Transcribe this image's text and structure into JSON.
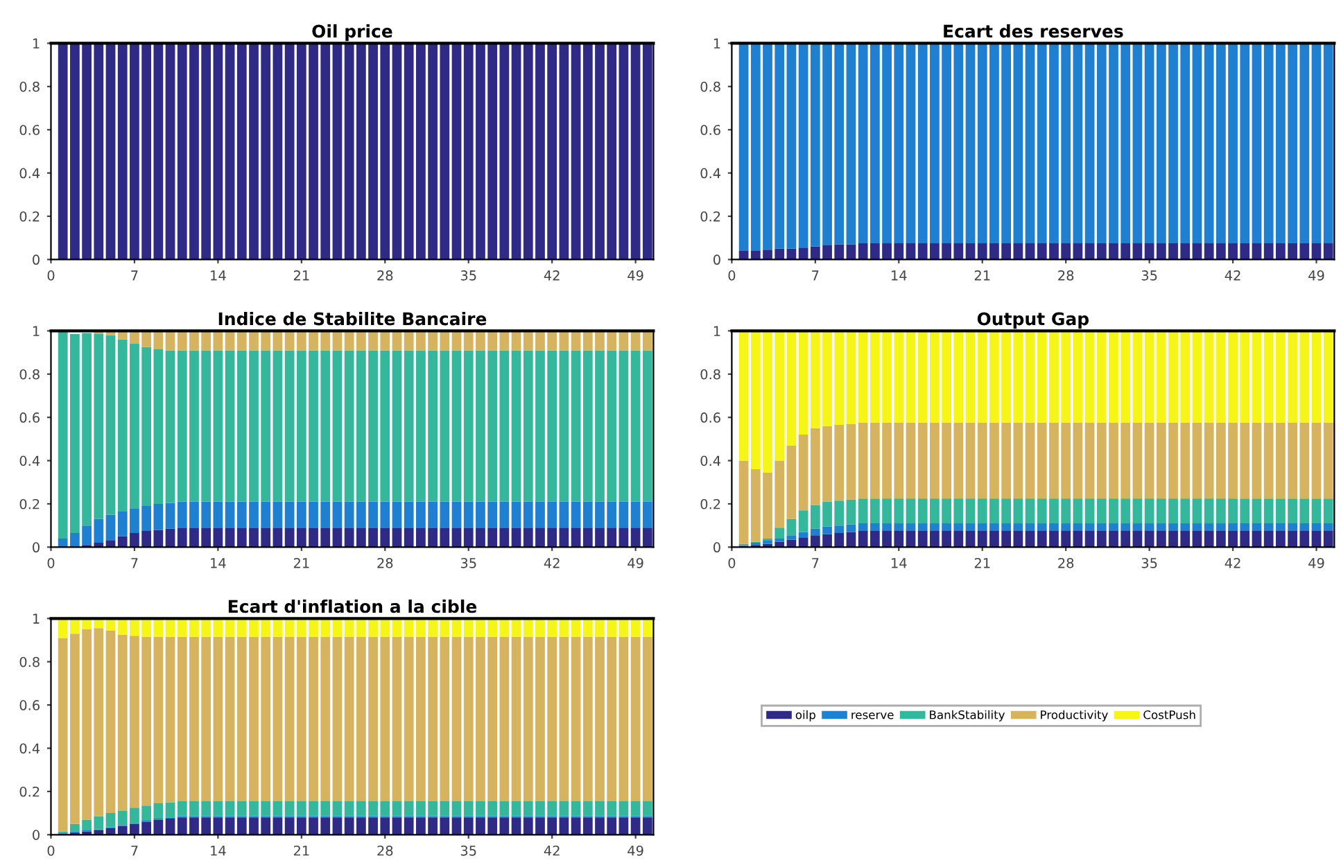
{
  "chart_data": [
    {
      "type": "bar",
      "stacked": true,
      "title": "Oil price",
      "x": [
        1,
        2,
        3,
        4,
        5,
        6,
        7,
        8,
        9,
        10,
        11,
        12,
        13,
        14,
        15,
        16,
        17,
        18,
        19,
        20,
        21,
        22,
        23,
        24,
        25,
        26,
        27,
        28,
        29,
        30,
        31,
        32,
        33,
        34,
        35,
        36,
        37,
        38,
        39,
        40,
        41,
        42,
        43,
        44,
        45,
        46,
        47,
        48,
        49,
        50
      ],
      "xlim": [
        0,
        50.5
      ],
      "xticks": [
        0,
        7,
        14,
        21,
        28,
        35,
        42,
        49
      ],
      "ylim": [
        0,
        1
      ],
      "yticks": [
        0,
        0.2,
        0.4,
        0.6,
        0.8,
        1
      ],
      "series": [
        {
          "color": "#2e2a86",
          "values": [
            1,
            1,
            1,
            1,
            1,
            1,
            1,
            1,
            1,
            1,
            1,
            1,
            1,
            1,
            1,
            1,
            1,
            1,
            1,
            1,
            1,
            1,
            1,
            1,
            1,
            1,
            1,
            1,
            1,
            1,
            1,
            1,
            1,
            1,
            1,
            1,
            1,
            1,
            1,
            1,
            1,
            1,
            1,
            1,
            1,
            1,
            1,
            1,
            1,
            1
          ]
        }
      ]
    },
    {
      "type": "bar",
      "stacked": true,
      "title": "Ecart des reserves",
      "x": [
        1,
        2,
        3,
        4,
        5,
        6,
        7,
        8,
        9,
        10,
        11,
        12,
        13,
        14,
        15,
        16,
        17,
        18,
        19,
        20,
        21,
        22,
        23,
        24,
        25,
        26,
        27,
        28,
        29,
        30,
        31,
        32,
        33,
        34,
        35,
        36,
        37,
        38,
        39,
        40,
        41,
        42,
        43,
        44,
        45,
        46,
        47,
        48,
        49,
        50
      ],
      "xlim": [
        0,
        50.5
      ],
      "xticks": [
        0,
        7,
        14,
        21,
        28,
        35,
        42,
        49
      ],
      "ylim": [
        0,
        1
      ],
      "yticks": [
        0,
        0.2,
        0.4,
        0.6,
        0.8,
        1
      ],
      "series": [
        {
          "color": "#2e2a86",
          "values": [
            0.04,
            0.04,
            0.045,
            0.05,
            0.05,
            0.055,
            0.06,
            0.065,
            0.07,
            0.07,
            0.075,
            0.075,
            0.075,
            0.075,
            0.075,
            0.075,
            0.075,
            0.075,
            0.075,
            0.075,
            0.075,
            0.075,
            0.075,
            0.075,
            0.075,
            0.075,
            0.075,
            0.075,
            0.075,
            0.075,
            0.075,
            0.075,
            0.075,
            0.075,
            0.075,
            0.075,
            0.075,
            0.075,
            0.075,
            0.075,
            0.075,
            0.075,
            0.075,
            0.075,
            0.075,
            0.075,
            0.075,
            0.075,
            0.075,
            0.075
          ]
        },
        {
          "color": "#1f80d2",
          "values": [
            0.96,
            0.96,
            0.955,
            0.95,
            0.95,
            0.945,
            0.94,
            0.935,
            0.93,
            0.93,
            0.925,
            0.925,
            0.925,
            0.925,
            0.925,
            0.925,
            0.925,
            0.925,
            0.925,
            0.925,
            0.925,
            0.925,
            0.925,
            0.925,
            0.925,
            0.925,
            0.925,
            0.925,
            0.925,
            0.925,
            0.925,
            0.925,
            0.925,
            0.925,
            0.925,
            0.925,
            0.925,
            0.925,
            0.925,
            0.925,
            0.925,
            0.925,
            0.925,
            0.925,
            0.925,
            0.925,
            0.925,
            0.925,
            0.925,
            0.925
          ]
        }
      ]
    },
    {
      "type": "bar",
      "stacked": true,
      "title": "Indice de Stabilite Bancaire",
      "x": [
        1,
        2,
        3,
        4,
        5,
        6,
        7,
        8,
        9,
        10,
        11,
        12,
        13,
        14,
        15,
        16,
        17,
        18,
        19,
        20,
        21,
        22,
        23,
        24,
        25,
        26,
        27,
        28,
        29,
        30,
        31,
        32,
        33,
        34,
        35,
        36,
        37,
        38,
        39,
        40,
        41,
        42,
        43,
        44,
        45,
        46,
        47,
        48,
        49,
        50
      ],
      "xlim": [
        0,
        50.5
      ],
      "xticks": [
        0,
        7,
        14,
        21,
        28,
        35,
        42,
        49
      ],
      "ylim": [
        0,
        1
      ],
      "yticks": [
        0,
        0.2,
        0.4,
        0.6,
        0.8,
        1
      ],
      "series": [
        {
          "color": "#2e2a86",
          "values": [
            0,
            null,
            0.01,
            0.02,
            0.03,
            0.05,
            0.065,
            0.075,
            0.08,
            0.085,
            0.09,
            0.09,
            0.09,
            0.09,
            0.09,
            0.09,
            0.09,
            0.09,
            0.09,
            0.09,
            0.09,
            0.09,
            0.09,
            0.09,
            0.09,
            0.09,
            0.09,
            0.09,
            0.09,
            0.09,
            0.09,
            0.09,
            0.09,
            0.09,
            0.09,
            0.09,
            0.09,
            0.09,
            0.09,
            0.09,
            0.09,
            0.09,
            0.09,
            0.09,
            0.09,
            0.09,
            0.09,
            0.09,
            0.09,
            0.09
          ]
        },
        {
          "color": "#1f80d2",
          "values": [
            0.04,
            0.065,
            0.09,
            0.11,
            0.12,
            0.115,
            0.115,
            0.115,
            0.12,
            0.12,
            0.12,
            0.12,
            0.12,
            0.12,
            0.12,
            0.12,
            0.12,
            0.12,
            0.12,
            0.12,
            0.12,
            0.12,
            0.12,
            0.12,
            0.12,
            0.12,
            0.12,
            0.12,
            0.12,
            0.12,
            0.12,
            0.12,
            0.12,
            0.12,
            0.12,
            0.12,
            0.12,
            0.12,
            0.12,
            0.12,
            0.12,
            0.12,
            0.12,
            0.12,
            0.12,
            0.12,
            0.12,
            0.12,
            0.12,
            0.12
          ]
        },
        {
          "color": "#35b79c",
          "values": [
            0.955,
            0.92,
            0.89,
            0.855,
            0.83,
            0.795,
            0.76,
            0.735,
            0.715,
            0.705,
            0.7,
            0.7,
            0.7,
            0.7,
            0.7,
            0.7,
            0.7,
            0.7,
            0.7,
            0.7,
            0.7,
            0.7,
            0.7,
            0.7,
            0.7,
            0.7,
            0.7,
            0.7,
            0.7,
            0.7,
            0.7,
            0.7,
            0.7,
            0.7,
            0.7,
            0.7,
            0.7,
            0.7,
            0.7,
            0.7,
            0.7,
            0.7,
            0.7,
            0.7,
            0.7,
            0.7,
            0.7,
            0.7,
            0.7,
            0.7
          ]
        },
        {
          "color": "#d5b35f",
          "values": [
            null,
            null,
            null,
            0.015,
            0.02,
            0.04,
            0.06,
            0.075,
            0.085,
            0.09,
            0.09,
            0.09,
            0.09,
            0.09,
            0.09,
            0.09,
            0.09,
            0.09,
            0.09,
            0.09,
            0.09,
            0.09,
            0.09,
            0.09,
            0.09,
            0.09,
            0.09,
            0.09,
            0.09,
            0.09,
            0.09,
            0.09,
            0.09,
            0.09,
            0.09,
            0.09,
            0.09,
            0.09,
            0.09,
            0.09,
            0.09,
            0.09,
            0.09,
            0.09,
            0.09,
            0.09,
            0.09,
            0.09,
            0.09,
            0.09
          ]
        }
      ]
    },
    {
      "type": "bar",
      "stacked": true,
      "title": "Output Gap",
      "x": [
        1,
        2,
        3,
        4,
        5,
        6,
        7,
        8,
        9,
        10,
        11,
        12,
        13,
        14,
        15,
        16,
        17,
        18,
        19,
        20,
        21,
        22,
        23,
        24,
        25,
        26,
        27,
        28,
        29,
        30,
        31,
        32,
        33,
        34,
        35,
        36,
        37,
        38,
        39,
        40,
        41,
        42,
        43,
        44,
        45,
        46,
        47,
        48,
        49,
        50
      ],
      "xlim": [
        0,
        50.5
      ],
      "xticks": [
        0,
        7,
        14,
        21,
        28,
        35,
        42,
        49
      ],
      "ylim": [
        0,
        1
      ],
      "yticks": [
        0,
        0.2,
        0.4,
        0.6,
        0.8,
        1
      ],
      "series": [
        {
          "color": "#2e2a86",
          "values": [
            0.005,
            0.01,
            0.015,
            0.025,
            0.035,
            0.045,
            0.055,
            0.06,
            0.065,
            0.07,
            0.075,
            0.075,
            0.075,
            0.075,
            0.075,
            0.075,
            0.075,
            0.075,
            0.075,
            0.075,
            0.075,
            0.075,
            0.075,
            0.075,
            0.075,
            0.075,
            0.075,
            0.075,
            0.075,
            0.075,
            0.075,
            0.075,
            0.075,
            0.075,
            0.075,
            0.075,
            0.075,
            0.075,
            0.075,
            0.075,
            0.075,
            0.075,
            0.075,
            0.075,
            0.075,
            0.075,
            0.075,
            0.075,
            0.075,
            0.075
          ]
        },
        {
          "color": "#1f80d2",
          "values": [
            0.005,
            0.01,
            0.015,
            0.015,
            0.02,
            0.025,
            0.03,
            0.035,
            0.035,
            0.035,
            0.035,
            0.035,
            0.035,
            0.035,
            0.035,
            0.035,
            0.035,
            0.035,
            0.035,
            0.035,
            0.035,
            0.035,
            0.035,
            0.035,
            0.035,
            0.035,
            0.035,
            0.035,
            0.035,
            0.035,
            0.035,
            0.035,
            0.035,
            0.035,
            0.035,
            0.035,
            0.035,
            0.035,
            0.035,
            0.035,
            0.035,
            0.035,
            0.035,
            0.035,
            0.035,
            0.035,
            0.035,
            0.035,
            0.035,
            0.035
          ]
        },
        {
          "color": "#35b79c",
          "values": [
            0.005,
            0.005,
            0.01,
            0.05,
            0.075,
            0.1,
            0.11,
            0.115,
            0.115,
            0.115,
            0.115,
            0.115,
            0.115,
            0.115,
            0.115,
            0.115,
            0.115,
            0.115,
            0.115,
            0.115,
            0.115,
            0.115,
            0.115,
            0.115,
            0.115,
            0.115,
            0.115,
            0.115,
            0.115,
            0.115,
            0.115,
            0.115,
            0.115,
            0.115,
            0.115,
            0.115,
            0.115,
            0.115,
            0.115,
            0.115,
            0.115,
            0.115,
            0.115,
            0.115,
            0.115,
            0.115,
            0.115,
            0.115,
            0.115,
            0.115
          ]
        },
        {
          "color": "#d5b35f",
          "values": [
            0.385,
            0.335,
            0.305,
            0.31,
            0.34,
            0.35,
            0.355,
            0.35,
            0.35,
            0.35,
            0.35,
            0.35,
            0.35,
            0.35,
            0.35,
            0.35,
            0.35,
            0.35,
            0.35,
            0.35,
            0.35,
            0.35,
            0.35,
            0.35,
            0.35,
            0.35,
            0.35,
            0.35,
            0.35,
            0.35,
            0.35,
            0.35,
            0.35,
            0.35,
            0.35,
            0.35,
            0.35,
            0.35,
            0.35,
            0.35,
            0.35,
            0.35,
            0.35,
            0.35,
            0.35,
            0.35,
            0.35,
            0.35,
            0.35,
            0.35
          ]
        },
        {
          "color": "#f5f518",
          "values": [
            0.6,
            0.64,
            0.655,
            0.6,
            0.53,
            0.48,
            0.45,
            0.44,
            0.435,
            0.43,
            0.425,
            0.425,
            0.425,
            0.425,
            0.425,
            0.425,
            0.425,
            0.425,
            0.425,
            0.425,
            0.425,
            0.425,
            0.425,
            0.425,
            0.425,
            0.425,
            0.425,
            0.425,
            0.425,
            0.425,
            0.425,
            0.425,
            0.425,
            0.425,
            0.425,
            0.425,
            0.425,
            0.425,
            0.425,
            0.425,
            0.425,
            0.425,
            0.425,
            0.425,
            0.425,
            0.425,
            0.425,
            0.425,
            0.425,
            0.425
          ]
        }
      ]
    },
    {
      "type": "bar",
      "stacked": true,
      "title": "Ecart d'inflation a la cible",
      "legend": "right",
      "x": [
        1,
        2,
        3,
        4,
        5,
        6,
        7,
        8,
        9,
        10,
        11,
        12,
        13,
        14,
        15,
        16,
        17,
        18,
        19,
        20,
        21,
        22,
        23,
        24,
        25,
        26,
        27,
        28,
        29,
        30,
        31,
        32,
        33,
        34,
        35,
        36,
        37,
        38,
        39,
        40,
        41,
        42,
        43,
        44,
        45,
        46,
        47,
        48,
        49,
        50
      ],
      "xlim": [
        0,
        50.5
      ],
      "xticks": [
        0,
        7,
        14,
        21,
        28,
        35,
        42,
        49
      ],
      "ylim": [
        0,
        1
      ],
      "yticks": [
        0,
        0.2,
        0.4,
        0.6,
        0.8,
        1
      ],
      "series": [
        {
          "name": "oilp",
          "color": "#2e2a86",
          "values": [
            0.005,
            0.01,
            0.015,
            0.02,
            0.03,
            0.04,
            0.05,
            0.06,
            0.07,
            0.075,
            0.08,
            0.08,
            0.08,
            0.08,
            0.08,
            0.08,
            0.08,
            0.08,
            0.08,
            0.08,
            0.08,
            0.08,
            0.08,
            0.08,
            0.08,
            0.08,
            0.08,
            0.08,
            0.08,
            0.08,
            0.08,
            0.08,
            0.08,
            0.08,
            0.08,
            0.08,
            0.08,
            0.08,
            0.08,
            0.08,
            0.08,
            0.08,
            0.08,
            0.08,
            0.08,
            0.08,
            0.08,
            0.08,
            0.08,
            0.08
          ]
        },
        {
          "name": "reserve",
          "color": "#1f80d2",
          "values": [
            0.005,
            0.005,
            0.005,
            0.005,
            0.005,
            0.005,
            0.005,
            0.005,
            0.005,
            0.005,
            0.005,
            0.005,
            0.005,
            0.005,
            0.005,
            0.005,
            0.005,
            0.005,
            0.005,
            0.005,
            0.005,
            0.005,
            0.005,
            0.005,
            0.005,
            0.005,
            0.005,
            0.005,
            0.005,
            0.005,
            0.005,
            0.005,
            0.005,
            0.005,
            0.005,
            0.005,
            0.005,
            0.005,
            0.005,
            0.005,
            0.005,
            0.005,
            0.005,
            0.005,
            0.005,
            0.005,
            0.005,
            0.005,
            0.005,
            0.005
          ]
        },
        {
          "name": "BankStability",
          "color": "#35b79c",
          "values": [
            0.005,
            0.035,
            0.05,
            0.06,
            0.065,
            0.065,
            0.07,
            0.07,
            0.07,
            0.07,
            0.07,
            0.07,
            0.07,
            0.07,
            0.07,
            0.07,
            0.07,
            0.07,
            0.07,
            0.07,
            0.07,
            0.07,
            0.07,
            0.07,
            0.07,
            0.07,
            0.07,
            0.07,
            0.07,
            0.07,
            0.07,
            0.07,
            0.07,
            0.07,
            0.07,
            0.07,
            0.07,
            0.07,
            0.07,
            0.07,
            0.07,
            0.07,
            0.07,
            0.07,
            0.07,
            0.07,
            0.07,
            0.07,
            0.07,
            0.07
          ]
        },
        {
          "name": "Productivity",
          "color": "#d5b35f",
          "values": [
            0.895,
            0.88,
            0.88,
            0.87,
            0.845,
            0.815,
            0.795,
            0.78,
            0.77,
            0.765,
            0.76,
            0.76,
            0.76,
            0.76,
            0.76,
            0.76,
            0.76,
            0.76,
            0.76,
            0.76,
            0.76,
            0.76,
            0.76,
            0.76,
            0.76,
            0.76,
            0.76,
            0.76,
            0.76,
            0.76,
            0.76,
            0.76,
            0.76,
            0.76,
            0.76,
            0.76,
            0.76,
            0.76,
            0.76,
            0.76,
            0.76,
            0.76,
            0.76,
            0.76,
            0.76,
            0.76,
            0.76,
            0.76,
            0.76,
            0.76
          ]
        },
        {
          "name": "CostPush",
          "color": "#f5f518",
          "values": [
            0.09,
            0.07,
            0.05,
            0.045,
            0.055,
            0.075,
            0.08,
            0.085,
            0.085,
            0.085,
            0.085,
            0.085,
            0.085,
            0.085,
            0.085,
            0.085,
            0.085,
            0.085,
            0.085,
            0.085,
            0.085,
            0.085,
            0.085,
            0.085,
            0.085,
            0.085,
            0.085,
            0.085,
            0.085,
            0.085,
            0.085,
            0.085,
            0.085,
            0.085,
            0.085,
            0.085,
            0.085,
            0.085,
            0.085,
            0.085,
            0.085,
            0.085,
            0.085,
            0.085,
            0.085,
            0.085,
            0.085,
            0.085,
            0.085,
            0.085
          ]
        }
      ]
    }
  ]
}
